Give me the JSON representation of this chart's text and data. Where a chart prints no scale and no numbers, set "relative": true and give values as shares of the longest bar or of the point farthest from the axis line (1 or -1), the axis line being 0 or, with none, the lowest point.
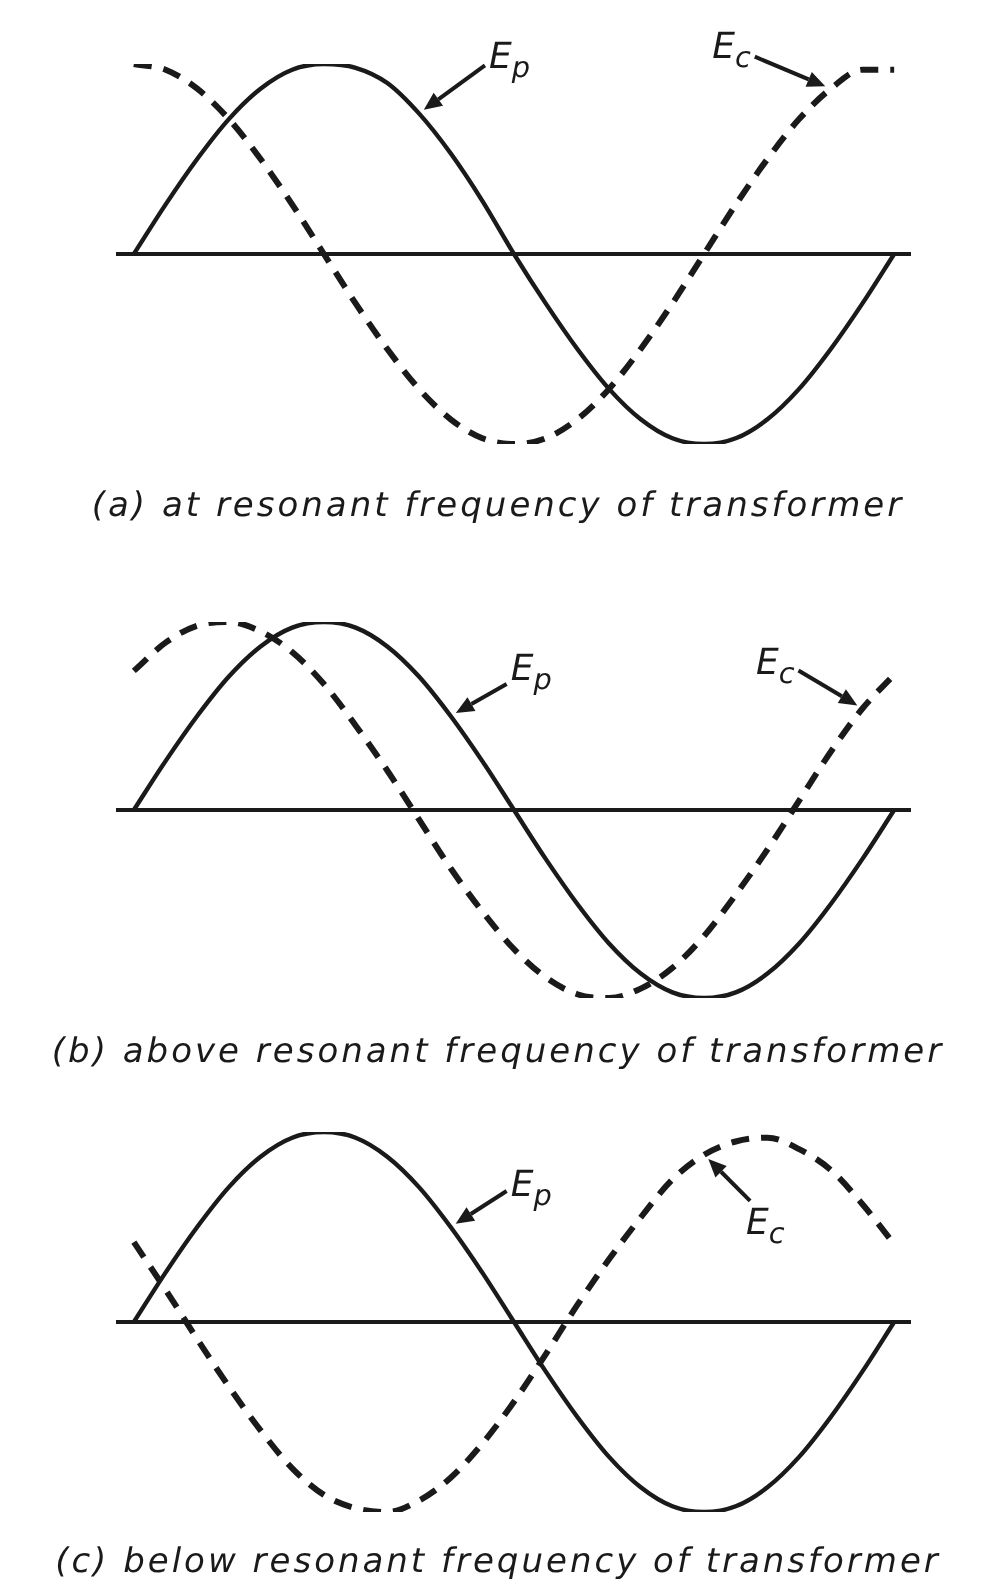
{
  "chart_data": [
    {
      "type": "line",
      "relative": true,
      "title": "(a) at resonant frequency of transformer",
      "categories": [
        null,
        null,
        null,
        null,
        null,
        null,
        null,
        null,
        null,
        null,
        null,
        null,
        null,
        null,
        null,
        null,
        null,
        null,
        null,
        null,
        null,
        null,
        null,
        null,
        null
      ],
      "series": [
        {
          "name": "E$_{p}$",
          "color": "#1a1a1a",
          "line_style": "solid",
          "values": [
            0,
            0.26,
            0.5,
            0.71,
            0.87,
            0.97,
            1,
            0.98,
            0.9,
            0.74,
            0.53,
            0.28,
            0,
            -0.26,
            -0.5,
            -0.71,
            -0.87,
            -0.97,
            -1,
            -0.97,
            -0.87,
            -0.71,
            -0.5,
            -0.26,
            0
          ]
        },
        {
          "name": "E$_{c}$",
          "color": "#1a1a1a",
          "line_style": "dashed",
          "values": [
            1,
            0.97,
            0.87,
            0.71,
            0.5,
            0.26,
            0,
            -0.26,
            -0.5,
            -0.71,
            -0.87,
            -0.97,
            -1,
            -0.97,
            -0.87,
            -0.71,
            -0.5,
            -0.26,
            0,
            0.26,
            0.5,
            0.71,
            0.87,
            0.97,
            0.97
          ]
        }
      ]
    },
    {
      "type": "line",
      "relative": true,
      "title": "(b) above resonant frequency of transformer",
      "categories": [
        null,
        null,
        null,
        null,
        null,
        null,
        null,
        null,
        null,
        null,
        null,
        null,
        null,
        null,
        null,
        null,
        null,
        null,
        null,
        null,
        null,
        null,
        null,
        null,
        null
      ],
      "series": [
        {
          "name": "E$_{p}$",
          "color": "#1a1a1a",
          "line_style": "solid",
          "values": [
            0,
            0.26,
            0.5,
            0.71,
            0.87,
            0.97,
            1,
            0.97,
            0.87,
            0.71,
            0.5,
            0.26,
            0,
            -0.26,
            -0.5,
            -0.71,
            -0.87,
            -0.97,
            -1,
            -0.97,
            -0.87,
            -0.71,
            -0.5,
            -0.26,
            0
          ]
        },
        {
          "name": "E$_{c}$",
          "color": "#1a1a1a",
          "line_style": "dashed",
          "values": [
            0.74,
            0.89,
            0.98,
            1,
            0.95,
            0.84,
            0.67,
            0.45,
            0.21,
            -0.05,
            -0.31,
            -0.54,
            -0.74,
            -0.89,
            -0.98,
            -1,
            -0.95,
            -0.84,
            -0.67,
            -0.45,
            -0.21,
            0.05,
            0.31,
            0.54,
            0.72
          ]
        }
      ]
    },
    {
      "type": "line",
      "relative": true,
      "title": "(c) below resonant frequency of transformer",
      "categories": [
        null,
        null,
        null,
        null,
        null,
        null,
        null,
        null,
        null,
        null,
        null,
        null,
        null,
        null,
        null,
        null,
        null,
        null,
        null,
        null,
        null,
        null,
        null,
        null,
        null
      ],
      "series": [
        {
          "name": "E$_{p}$",
          "color": "#1a1a1a",
          "line_style": "solid",
          "values": [
            0,
            0.26,
            0.5,
            0.71,
            0.87,
            0.97,
            1,
            0.97,
            0.87,
            0.71,
            0.5,
            0.26,
            0,
            -0.26,
            -0.5,
            -0.71,
            -0.87,
            -0.97,
            -1,
            -0.97,
            -0.87,
            -0.71,
            -0.5,
            -0.26,
            0
          ]
        },
        {
          "name": "E$_{c}$",
          "color": "#1a1a1a",
          "line_style": "dashed",
          "values": [
            0.42,
            0.17,
            -0.09,
            -0.34,
            -0.57,
            -0.77,
            -0.91,
            -0.98,
            -1,
            -0.94,
            -0.82,
            -0.64,
            -0.42,
            -0.17,
            0.09,
            0.33,
            0.55,
            0.75,
            0.88,
            0.95,
            0.97,
            0.91,
            0.8,
            0.62,
            0.41
          ]
        }
      ]
    }
  ]
}
